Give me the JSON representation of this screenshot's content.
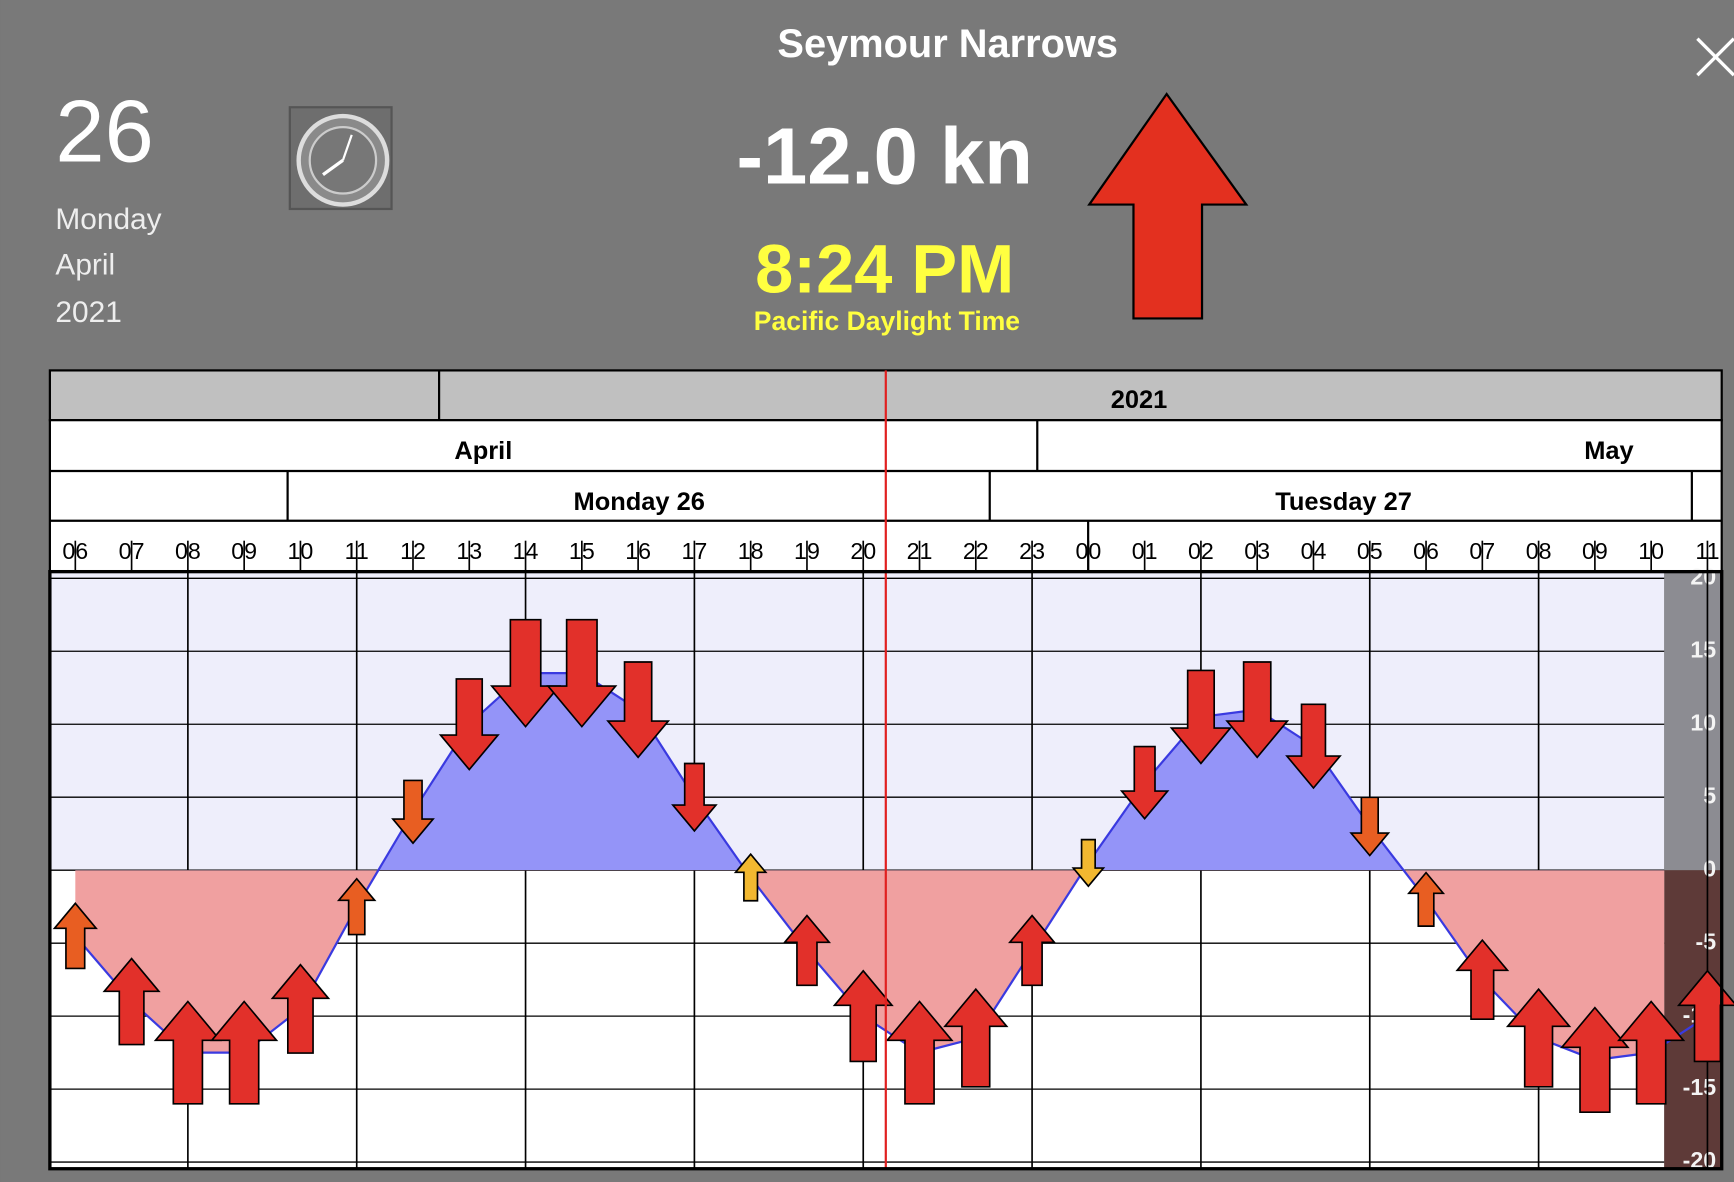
{
  "header": {
    "title": "Seymour Narrows",
    "day": "26",
    "weekday": "Monday",
    "month": "April",
    "year": "2021",
    "current_speed": "-12.0 kn",
    "current_time": "8:24 PM",
    "time_zone": "Pacific Daylight Time"
  },
  "timeline": {
    "year": "2021",
    "months": [
      "April",
      "May"
    ],
    "days": [
      "Monday 26",
      "Tuesday 27"
    ]
  },
  "chart_data": {
    "type": "area",
    "categories": [
      "06",
      "07",
      "08",
      "09",
      "10",
      "11",
      "12",
      "13",
      "14",
      "15",
      "16",
      "17",
      "18",
      "19",
      "20",
      "21",
      "22",
      "23",
      "00",
      "01",
      "02",
      "03",
      "04",
      "05",
      "06",
      "07",
      "08",
      "09",
      "10",
      "11"
    ],
    "values": [
      -4.5,
      -9,
      -12.5,
      -12.5,
      -9.5,
      -2.5,
      4,
      10,
      13.5,
      13.5,
      11,
      5,
      -0.5,
      -5.5,
      -10,
      -12.5,
      -11.5,
      -5.5,
      0.5,
      6,
      10.5,
      11,
      8.5,
      3,
      -2,
      -7.5,
      -11.5,
      -13,
      -12.5,
      -10
    ],
    "ylim": [
      -20,
      20
    ],
    "yticks": [
      20,
      15,
      10,
      5,
      0,
      -5,
      -10,
      -15,
      -20
    ],
    "grid": true,
    "colors": {
      "ebb": "#9494f8",
      "flood": "#f0a0a0",
      "line": "#3a3ae0"
    }
  }
}
